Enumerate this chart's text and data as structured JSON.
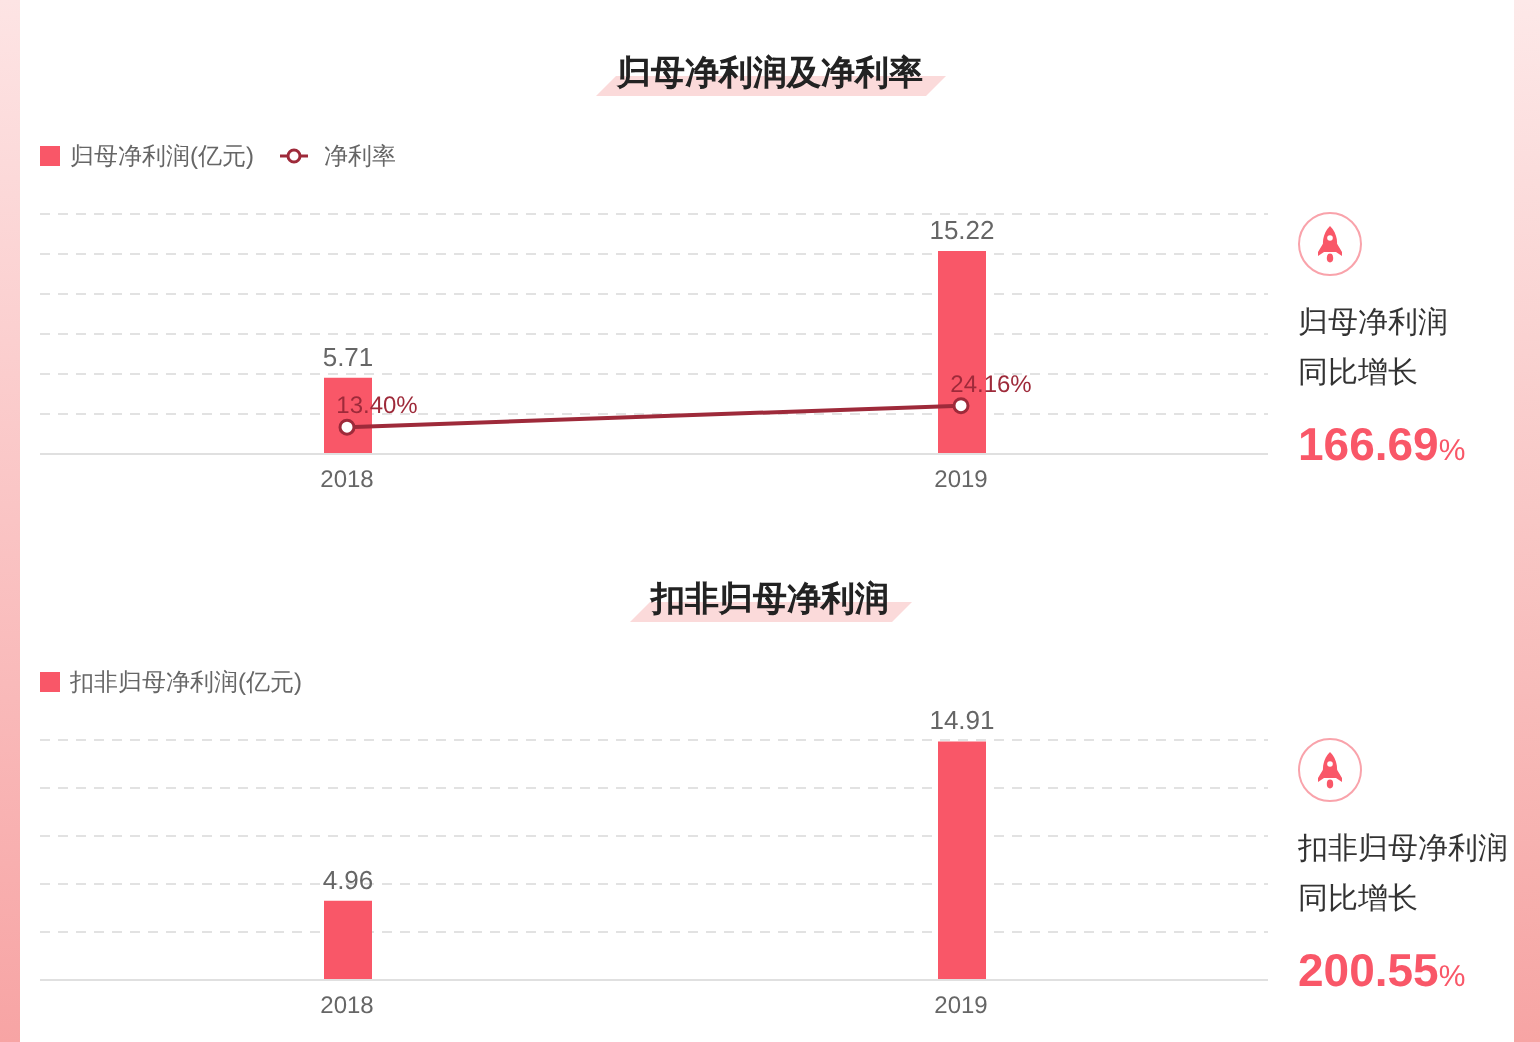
{
  "chart_data": [
    {
      "type": "bar",
      "title": "归母净利润及净利率",
      "categories": [
        "2018",
        "2019"
      ],
      "series": [
        {
          "name": "归母净利润(亿元)",
          "color": "#f95768",
          "values": [
            5.71,
            15.22
          ],
          "value_labels": [
            "5.71",
            "15.22"
          ]
        },
        {
          "name": "净利率",
          "type": "line",
          "axis": "y2",
          "color": "#9e2a3a",
          "values": [
            13.4,
            24.16
          ],
          "value_labels": [
            "13.40%",
            "24.16%"
          ]
        }
      ],
      "ylim": [
        0,
        18
      ],
      "yticks": [
        {
          "value": 3,
          "label": null
        },
        {
          "value": 6,
          "label": null
        },
        {
          "value": 9,
          "label": null
        },
        {
          "value": 12,
          "label": null
        },
        {
          "value": 15,
          "label": null
        },
        {
          "value": 18,
          "label": null
        }
      ],
      "y2lim": [
        0,
        120
      ],
      "grid": "y",
      "legend": "top left",
      "tick_labels": "x",
      "marker": "circle"
    },
    {
      "type": "other",
      "title": "归母净利润",
      "subtitle": "同比增长",
      "annotations": [
        "166.69%"
      ]
    },
    {
      "type": "bar",
      "title": "扣非归母净利润",
      "categories": [
        "2018",
        "2019"
      ],
      "series": [
        {
          "name": "扣非归母净利润(亿元)",
          "color": "#f95768",
          "values": [
            4.96,
            14.91
          ],
          "value_labels": [
            "4.96",
            "14.91"
          ]
        }
      ],
      "ylim": [
        0,
        15
      ],
      "yticks": [
        {
          "value": 3,
          "label": null
        },
        {
          "value": 6,
          "label": null
        },
        {
          "value": 9,
          "label": null
        },
        {
          "value": 12,
          "label": null
        },
        {
          "value": 15,
          "label": null
        }
      ],
      "grid": "y",
      "legend": "top left",
      "tick_labels": "x"
    },
    {
      "type": "other",
      "title": "扣非归母净利润",
      "subtitle": "同比增长",
      "annotations": [
        "200.55%"
      ]
    }
  ]
}
